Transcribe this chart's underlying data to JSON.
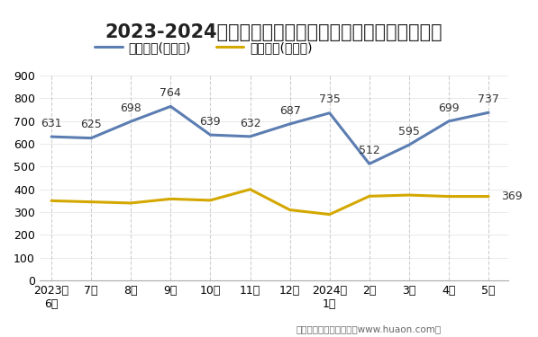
{
  "title": "2023-2024年广东省商品收发货人所在地进、出口额统计",
  "footer": "制图：华经产业研究院（www.huaon.com）",
  "x_labels": [
    "2023年\n6月",
    "7月",
    "8月",
    "9月",
    "10月",
    "11月",
    "12月",
    "2024年\n1月",
    "2月",
    "3月",
    "4月",
    "5月"
  ],
  "export_values": [
    631,
    625,
    698,
    764,
    639,
    632,
    687,
    735,
    512,
    595,
    699,
    737
  ],
  "import_values": [
    350,
    345,
    340,
    358,
    352,
    400,
    310,
    290,
    370,
    375,
    369,
    369
  ],
  "export_color": "#5b7db1",
  "import_color": "#d4a800",
  "export_label": "出口总额(亿美元)",
  "import_label": "进口总额(亿美元)",
  "ylim": [
    0,
    900
  ],
  "yticks": [
    0,
    100,
    200,
    300,
    400,
    500,
    600,
    700,
    800,
    900
  ],
  "bg_color": "#ffffff",
  "vgrid_color": "#bbbbbb",
  "hgrid_color": "#e0e0e0",
  "title_fontsize": 15,
  "legend_fontsize": 10,
  "tick_fontsize": 9,
  "annot_fontsize": 9,
  "export_annots": [
    631,
    625,
    698,
    764,
    639,
    632,
    687,
    735,
    512,
    595,
    699,
    737
  ],
  "import_annots_idx": [
    11
  ],
  "import_annots_val": [
    369
  ]
}
